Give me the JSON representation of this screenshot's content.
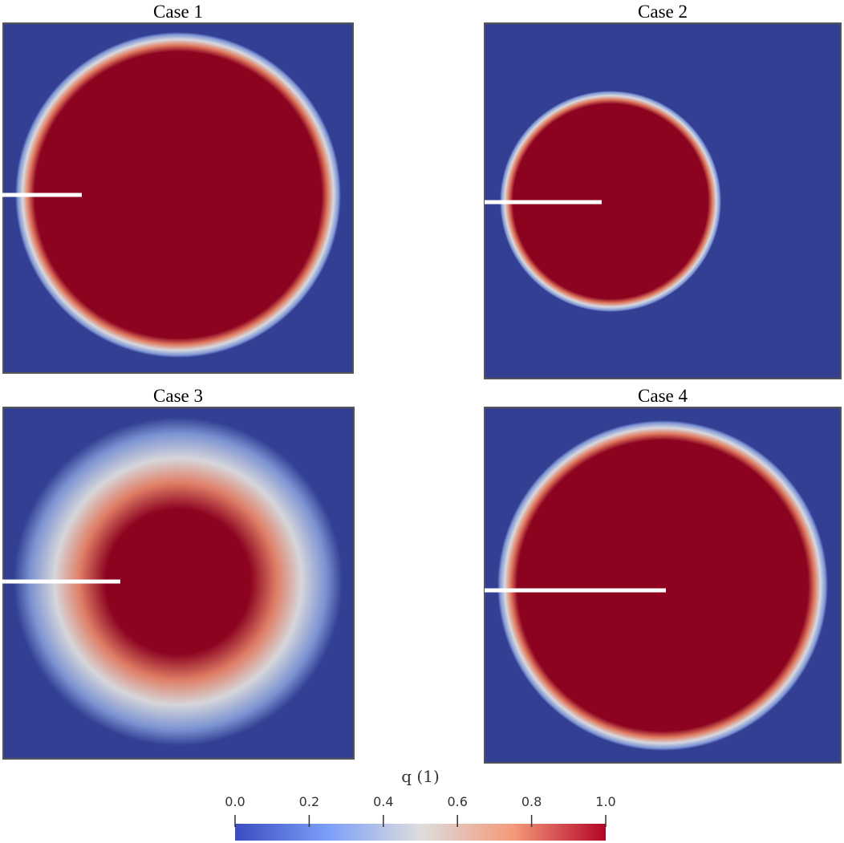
{
  "panels": [
    {
      "title": "Case 1"
    },
    {
      "title": "Case 2"
    },
    {
      "title": "Case 3"
    },
    {
      "title": "Case 4"
    }
  ],
  "colorbar": {
    "title": "q (1)",
    "ticks": [
      {
        "value": 0,
        "label": "0.0"
      },
      {
        "value": 0.2,
        "label": "0.2"
      },
      {
        "value": 0.4,
        "label": "0.4"
      },
      {
        "value": 0.6,
        "label": "0.6"
      },
      {
        "value": 0.8,
        "label": "0.8"
      },
      {
        "value": 1,
        "label": "1.0"
      }
    ]
  }
}
